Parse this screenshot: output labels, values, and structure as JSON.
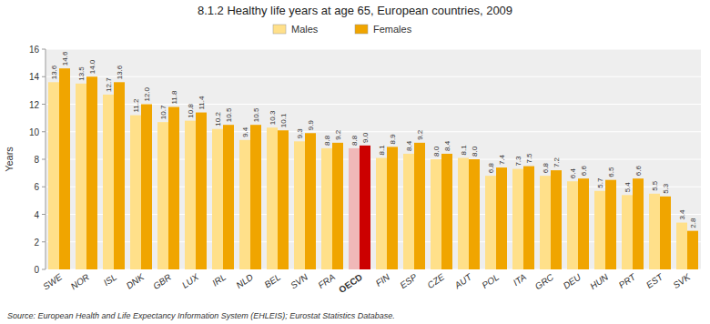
{
  "chart_data": {
    "type": "bar",
    "title": "8.1.2  Healthy life years at age 65, European countries, 2009",
    "ylabel": "Years",
    "source": "Source:  European Health and Life Expectancy Information System (EHLEIS); Eurostat Statistics Database.",
    "categories": [
      "SWE",
      "NOR",
      "ISL",
      "DNK",
      "GBR",
      "LUX",
      "IRL",
      "NLD",
      "BEL",
      "SVN",
      "FRA",
      "OECD",
      "FIN",
      "ESP",
      "CZE",
      "AUT",
      "POL",
      "ITA",
      "GRC",
      "DEU",
      "HUN",
      "PRT",
      "EST",
      "SVK"
    ],
    "series": [
      {
        "name": "Males",
        "color": "#FFE08A",
        "colors": [
          "#FFE08A",
          "#FFE08A",
          "#FFE08A",
          "#FFE08A",
          "#FFE08A",
          "#FFE08A",
          "#FFE08A",
          "#FFE08A",
          "#FFE08A",
          "#FFE08A",
          "#FFE08A",
          "#F0B8B8",
          "#FFE08A",
          "#FFE08A",
          "#FFE08A",
          "#FFE08A",
          "#FFE08A",
          "#FFE08A",
          "#FFE08A",
          "#FFE08A",
          "#FFE08A",
          "#FFE08A",
          "#FFE08A",
          "#FFE08A"
        ],
        "values": [
          13.6,
          13.5,
          12.7,
          11.2,
          10.7,
          10.8,
          10.2,
          9.4,
          10.3,
          9.3,
          8.8,
          8.8,
          8.1,
          8.4,
          8.0,
          8.1,
          6.8,
          7.3,
          6.8,
          6.4,
          5.7,
          5.4,
          5.5,
          3.4
        ],
        "value_labels": [
          "13.6",
          "13.5",
          "12.7",
          "11.2",
          "10.7",
          "10.8",
          "10.2",
          "9.4",
          "10.3",
          "9.3",
          "8.8",
          "8.8",
          "8.1",
          "8.4",
          "8.0",
          "8.1",
          "6.8",
          "7.3",
          "6.8",
          "6.4",
          "5.7",
          "5.4",
          "5.5",
          "3.4"
        ]
      },
      {
        "name": "Females",
        "color": "#F0A500",
        "colors": [
          "#F0A500",
          "#F0A500",
          "#F0A500",
          "#F0A500",
          "#F0A500",
          "#F0A500",
          "#F0A500",
          "#F0A500",
          "#F0A500",
          "#F0A500",
          "#F0A500",
          "#CC0000",
          "#F0A500",
          "#F0A500",
          "#F0A500",
          "#F0A500",
          "#F0A500",
          "#F0A500",
          "#F0A500",
          "#F0A500",
          "#F0A500",
          "#F0A500",
          "#F0A500",
          "#F0A500"
        ],
        "values": [
          14.6,
          14.0,
          13.6,
          12.0,
          11.8,
          11.4,
          10.5,
          10.5,
          10.1,
          9.9,
          9.2,
          9.0,
          8.9,
          9.2,
          8.4,
          8.0,
          7.4,
          7.5,
          7.2,
          6.6,
          6.5,
          6.6,
          5.3,
          2.8
        ],
        "value_labels": [
          "14.6",
          "14.0",
          "13.6",
          "12.0",
          "11.8",
          "11.4",
          "10.5",
          "10.5",
          "10.1",
          "9.9",
          "9.2",
          "9.0",
          "8.9",
          "9.2",
          "8.4",
          "8.0",
          "7.4",
          "7.5",
          "7.2",
          "6.6",
          "6.5",
          "6.6",
          "5.3",
          "2.8"
        ]
      }
    ],
    "ylim": [
      0,
      16
    ],
    "yticks": [
      0,
      2,
      4,
      6,
      8,
      10,
      12,
      14,
      16
    ],
    "grid": true,
    "legend": "top",
    "data_labels": true
  }
}
